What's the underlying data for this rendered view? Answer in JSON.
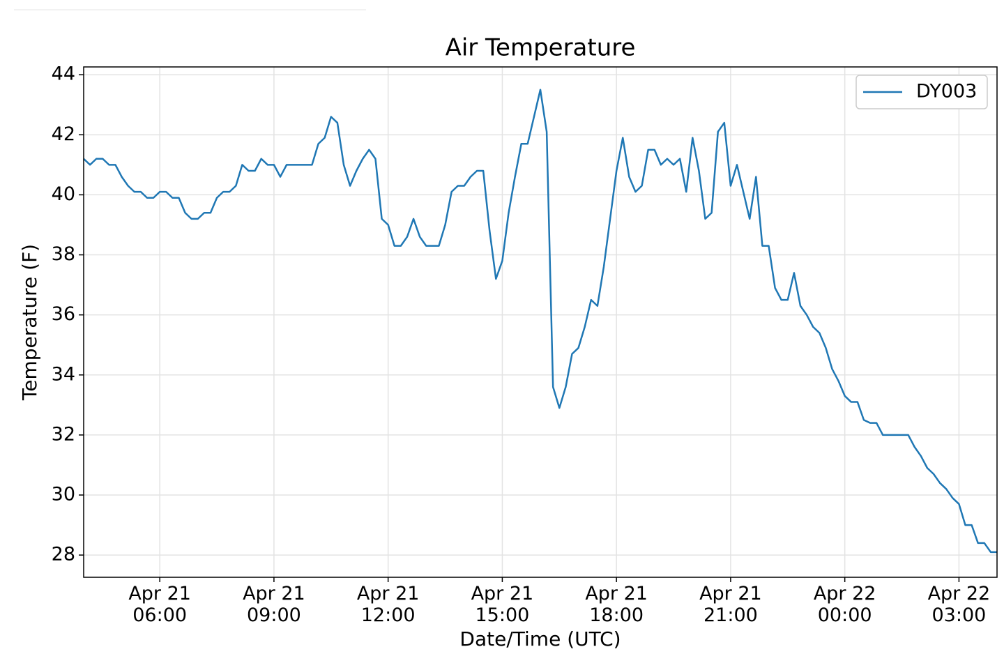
{
  "chart_data": {
    "type": "line",
    "title": "Air Temperature",
    "xlabel": "Date/Time (UTC)",
    "ylabel": "Temperature (F)",
    "x": [
      "Apr 21 04:00",
      "Apr 21 04:10",
      "Apr 21 04:20",
      "Apr 21 04:30",
      "Apr 21 04:40",
      "Apr 21 04:50",
      "Apr 21 05:00",
      "Apr 21 05:10",
      "Apr 21 05:20",
      "Apr 21 05:30",
      "Apr 21 05:40",
      "Apr 21 05:50",
      "Apr 21 06:00",
      "Apr 21 06:10",
      "Apr 21 06:20",
      "Apr 21 06:30",
      "Apr 21 06:40",
      "Apr 21 06:50",
      "Apr 21 07:00",
      "Apr 21 07:10",
      "Apr 21 07:20",
      "Apr 21 07:30",
      "Apr 21 07:40",
      "Apr 21 07:50",
      "Apr 21 08:00",
      "Apr 21 08:10",
      "Apr 21 08:20",
      "Apr 21 08:30",
      "Apr 21 08:40",
      "Apr 21 08:50",
      "Apr 21 09:00",
      "Apr 21 09:10",
      "Apr 21 09:20",
      "Apr 21 09:30",
      "Apr 21 09:40",
      "Apr 21 09:50",
      "Apr 21 10:00",
      "Apr 21 10:10",
      "Apr 21 10:20",
      "Apr 21 10:30",
      "Apr 21 10:40",
      "Apr 21 10:50",
      "Apr 21 11:00",
      "Apr 21 11:10",
      "Apr 21 11:20",
      "Apr 21 11:30",
      "Apr 21 11:40",
      "Apr 21 11:50",
      "Apr 21 12:00",
      "Apr 21 12:10",
      "Apr 21 12:20",
      "Apr 21 12:30",
      "Apr 21 12:40",
      "Apr 21 12:50",
      "Apr 21 13:00",
      "Apr 21 13:10",
      "Apr 21 13:20",
      "Apr 21 13:30",
      "Apr 21 13:40",
      "Apr 21 13:50",
      "Apr 21 14:00",
      "Apr 21 14:10",
      "Apr 21 14:20",
      "Apr 21 14:30",
      "Apr 21 14:40",
      "Apr 21 14:50",
      "Apr 21 15:00",
      "Apr 21 15:10",
      "Apr 21 15:20",
      "Apr 21 15:30",
      "Apr 21 15:40",
      "Apr 21 15:50",
      "Apr 21 16:00",
      "Apr 21 16:10",
      "Apr 21 16:20",
      "Apr 21 16:30",
      "Apr 21 16:40",
      "Apr 21 16:50",
      "Apr 21 17:00",
      "Apr 21 17:10",
      "Apr 21 17:20",
      "Apr 21 17:30",
      "Apr 21 17:40",
      "Apr 21 17:50",
      "Apr 21 18:00",
      "Apr 21 18:10",
      "Apr 21 18:20",
      "Apr 21 18:30",
      "Apr 21 18:40",
      "Apr 21 18:50",
      "Apr 21 19:00",
      "Apr 21 19:10",
      "Apr 21 19:20",
      "Apr 21 19:30",
      "Apr 21 19:40",
      "Apr 21 19:50",
      "Apr 21 20:00",
      "Apr 21 20:10",
      "Apr 21 20:20",
      "Apr 21 20:30",
      "Apr 21 20:40",
      "Apr 21 20:50",
      "Apr 21 21:00",
      "Apr 21 21:10",
      "Apr 21 21:20",
      "Apr 21 21:30",
      "Apr 21 21:40",
      "Apr 21 21:50",
      "Apr 21 22:00",
      "Apr 21 22:10",
      "Apr 21 22:20",
      "Apr 21 22:30",
      "Apr 21 22:40",
      "Apr 21 22:50",
      "Apr 21 23:00",
      "Apr 21 23:10",
      "Apr 21 23:20",
      "Apr 21 23:30",
      "Apr 21 23:40",
      "Apr 21 23:50",
      "Apr 22 00:00",
      "Apr 22 00:10",
      "Apr 22 00:20",
      "Apr 22 00:30",
      "Apr 22 00:40",
      "Apr 22 00:50",
      "Apr 22 01:00",
      "Apr 22 01:10",
      "Apr 22 01:20",
      "Apr 22 01:30",
      "Apr 22 01:40",
      "Apr 22 01:50",
      "Apr 22 02:00",
      "Apr 22 02:10",
      "Apr 22 02:20",
      "Apr 22 02:30",
      "Apr 22 02:40",
      "Apr 22 02:50",
      "Apr 22 03:00",
      "Apr 22 03:10",
      "Apr 22 03:20",
      "Apr 22 03:30",
      "Apr 22 03:40",
      "Apr 22 03:50",
      "Apr 22 04:00"
    ],
    "series": [
      {
        "name": "DY003",
        "color": "#1f77b4",
        "values": [
          41.2,
          41.0,
          41.2,
          41.2,
          41.0,
          41.0,
          40.6,
          40.3,
          40.1,
          40.1,
          39.9,
          39.9,
          40.1,
          40.1,
          39.9,
          39.9,
          39.4,
          39.2,
          39.2,
          39.4,
          39.4,
          39.9,
          40.1,
          40.1,
          40.3,
          41.0,
          40.8,
          40.8,
          41.2,
          41.0,
          41.0,
          40.6,
          41.0,
          41.0,
          41.0,
          41.0,
          41.0,
          41.7,
          41.9,
          42.6,
          42.4,
          41.0,
          40.3,
          40.8,
          41.2,
          41.5,
          41.2,
          39.2,
          39.0,
          38.3,
          38.3,
          38.6,
          39.2,
          38.6,
          38.3,
          38.3,
          38.3,
          39.0,
          40.1,
          40.3,
          40.3,
          40.6,
          40.8,
          40.8,
          38.8,
          37.2,
          37.8,
          39.4,
          40.6,
          41.7,
          41.7,
          42.6,
          43.5,
          42.1,
          33.6,
          32.9,
          33.6,
          34.7,
          34.9,
          35.6,
          36.5,
          36.3,
          37.6,
          39.2,
          40.8,
          41.9,
          40.6,
          40.1,
          40.3,
          41.5,
          41.5,
          41.0,
          41.2,
          41.0,
          41.2,
          40.1,
          41.9,
          40.8,
          39.2,
          39.4,
          42.1,
          42.4,
          40.3,
          41.0,
          40.1,
          39.2,
          40.6,
          38.3,
          38.3,
          36.9,
          36.5,
          36.5,
          37.4,
          36.3,
          36.0,
          35.6,
          35.4,
          34.9,
          34.2,
          33.8,
          33.3,
          33.1,
          33.1,
          32.5,
          32.4,
          32.4,
          32.0,
          32.0,
          32.0,
          32.0,
          32.0,
          31.6,
          31.3,
          30.9,
          30.7,
          30.4,
          30.2,
          29.9,
          29.7,
          29.0,
          29.0,
          28.4,
          28.4,
          28.1,
          28.1
        ]
      }
    ],
    "xlim": [
      "Apr 21 04:00",
      "Apr 22 04:00"
    ],
    "xticks": [
      "Apr 21 06:00",
      "Apr 21 09:00",
      "Apr 21 12:00",
      "Apr 21 15:00",
      "Apr 21 18:00",
      "Apr 21 21:00",
      "Apr 22 00:00",
      "Apr 22 03:00"
    ],
    "ylim": [
      27.26,
      44.26
    ],
    "yticks": [
      28,
      30,
      32,
      34,
      36,
      38,
      40,
      42,
      44
    ],
    "grid": true,
    "legend": "upper right"
  }
}
